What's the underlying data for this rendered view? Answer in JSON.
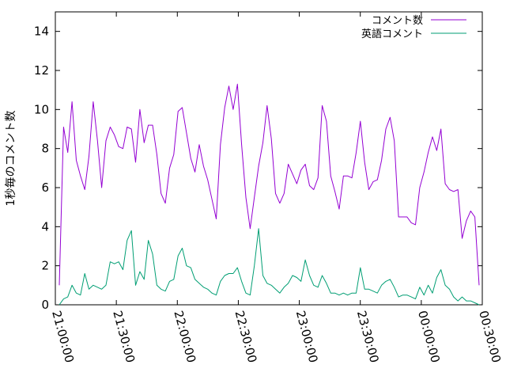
{
  "chart_data": {
    "type": "line",
    "title": "",
    "xlabel": "",
    "ylabel": "1秒毎のコメント数",
    "x_ticks": [
      "21:00:00",
      "21:30:00",
      "22:00:00",
      "22:30:00",
      "23:00:00",
      "23:30:00",
      "00:00:00",
      "00:30:00"
    ],
    "x_tick_fractions": [
      0,
      0.142857,
      0.285714,
      0.428571,
      0.571429,
      0.714286,
      0.857143,
      1
    ],
    "ylim": [
      0,
      15
    ],
    "y_ticks": [
      0,
      2,
      4,
      6,
      8,
      10,
      12,
      14
    ],
    "grid": false,
    "legend_position": "top-right",
    "series": [
      {
        "name": "コメント数",
        "color": "#9400d3",
        "values": [
          1.0,
          9.1,
          7.8,
          10.4,
          7.4,
          6.6,
          5.9,
          7.6,
          10.4,
          8.4,
          6.0,
          8.4,
          9.1,
          8.7,
          8.1,
          8.0,
          9.1,
          9.0,
          7.3,
          10.0,
          8.3,
          9.2,
          9.2,
          7.7,
          5.7,
          5.2,
          7.0,
          7.7,
          9.9,
          10.1,
          8.8,
          7.5,
          6.8,
          8.2,
          7.1,
          6.4,
          5.4,
          4.4,
          8.2,
          10.1,
          11.2,
          10.0,
          11.3,
          8.2,
          5.5,
          3.9,
          5.5,
          7.1,
          8.3,
          10.2,
          8.5,
          5.7,
          5.2,
          5.7,
          7.2,
          6.7,
          6.2,
          6.9,
          7.2,
          6.1,
          5.9,
          6.5,
          10.2,
          9.4,
          6.6,
          5.8,
          4.9,
          6.6,
          6.6,
          6.5,
          7.8,
          9.4,
          7.3,
          5.9,
          6.3,
          6.4,
          7.4,
          9.0,
          9.6,
          8.4,
          4.5,
          4.5,
          4.5,
          4.2,
          4.1,
          6.0,
          6.8,
          7.8,
          8.6,
          7.9,
          9.0,
          6.2,
          5.9,
          5.8,
          5.9,
          3.4,
          4.3,
          4.8,
          4.5,
          1.0
        ]
      },
      {
        "name": "英語コメント",
        "color": "#009e73",
        "values": [
          0.0,
          0.3,
          0.4,
          1.0,
          0.6,
          0.5,
          1.6,
          0.8,
          1.0,
          0.9,
          0.8,
          1.0,
          2.2,
          2.1,
          2.2,
          1.8,
          3.3,
          3.8,
          1.0,
          1.7,
          1.3,
          3.3,
          2.6,
          1.0,
          0.8,
          0.7,
          1.2,
          1.3,
          2.5,
          2.9,
          2.0,
          1.9,
          1.3,
          1.1,
          0.9,
          0.8,
          0.6,
          0.5,
          1.2,
          1.5,
          1.6,
          1.6,
          1.9,
          1.2,
          0.6,
          0.5,
          2.0,
          3.9,
          1.5,
          1.1,
          1.0,
          0.8,
          0.6,
          0.9,
          1.1,
          1.5,
          1.4,
          1.2,
          2.3,
          1.5,
          1.0,
          0.9,
          1.5,
          1.1,
          0.6,
          0.6,
          0.5,
          0.6,
          0.5,
          0.6,
          0.6,
          1.9,
          0.8,
          0.8,
          0.7,
          0.6,
          1.0,
          1.2,
          1.3,
          0.9,
          0.4,
          0.5,
          0.5,
          0.4,
          0.3,
          0.9,
          0.5,
          1.0,
          0.6,
          1.4,
          1.8,
          1.0,
          0.8,
          0.4,
          0.2,
          0.4,
          0.2,
          0.2,
          0.1,
          0.0
        ]
      }
    ]
  }
}
